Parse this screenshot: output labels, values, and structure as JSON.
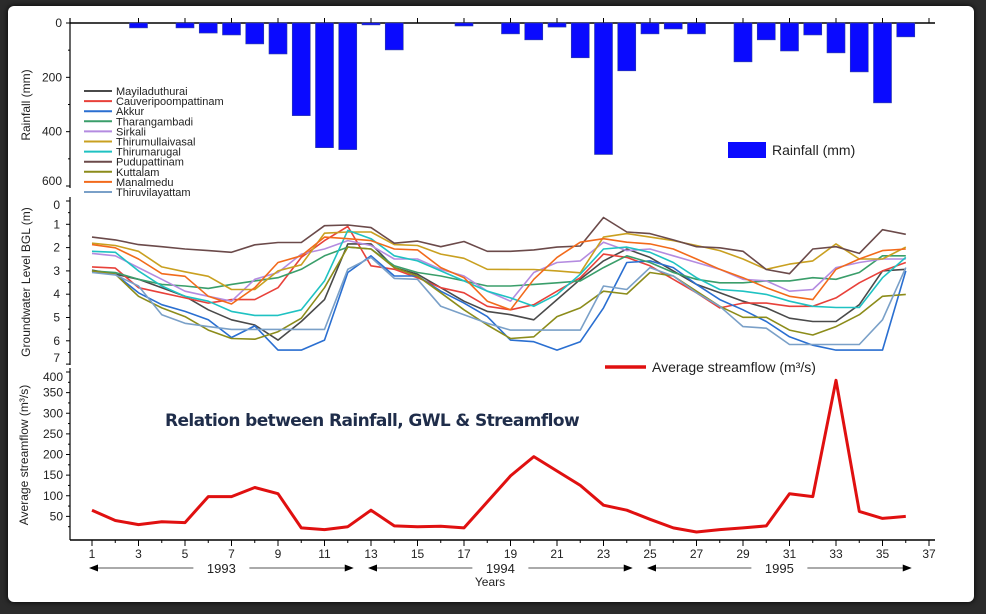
{
  "chart_data": [
    {
      "type": "bar",
      "name": "rainfall",
      "ylabel": "Rainfall (mm)",
      "ylim": [
        0,
        600
      ],
      "y_inverted": true,
      "yticks": [
        0,
        200,
        400,
        600
      ],
      "legend": "Rainfall (mm)",
      "legend_placement": "right",
      "color": "#0a0aff",
      "x": [
        1,
        2,
        3,
        4,
        5,
        6,
        7,
        8,
        9,
        10,
        11,
        12,
        13,
        14,
        15,
        16,
        17,
        18,
        19,
        20,
        21,
        22,
        23,
        24,
        25,
        26,
        27,
        28,
        29,
        30,
        31,
        32,
        33,
        34,
        35,
        36
      ],
      "values": [
        0,
        0,
        18,
        0,
        18,
        37,
        44,
        77,
        114,
        341,
        459,
        466,
        7,
        99,
        0,
        0,
        11,
        0,
        40,
        62,
        15,
        128,
        484,
        176,
        40,
        22,
        40,
        0,
        143,
        62,
        103,
        44,
        110,
        180,
        294,
        51
      ]
    },
    {
      "type": "line",
      "name": "groundwater",
      "ylabel": "Groundwater Level BGL (m)",
      "ylim": [
        0,
        7
      ],
      "y_inverted": true,
      "yticks": [
        0,
        1,
        2,
        3,
        4,
        5,
        6,
        7
      ],
      "legend_placement": "top-left",
      "series": [
        {
          "name": "Mayiladuthurai",
          "color": "#4a4a4a",
          "values": [
            2.97,
            3.14,
            3.36,
            3.72,
            4.09,
            4.67,
            5.1,
            5.32,
            5.97,
            5.17,
            4.23,
            1.84,
            1.84,
            2.86,
            3.14,
            3.72,
            4.3,
            4.74,
            4.88,
            5.1,
            4.23,
            3.36,
            2.57,
            2.06,
            2.42,
            3.0,
            3.58,
            3.94,
            4.3,
            4.59,
            5.03,
            5.17,
            5.17,
            4.45,
            3.0,
            2.93
          ]
        },
        {
          "name": "Cauveripoompattinam",
          "color": "#e8413a",
          "values": [
            2.83,
            2.88,
            3.72,
            3.94,
            4.16,
            4.38,
            4.23,
            4.23,
            3.72,
            2.42,
            1.7,
            1.09,
            2.78,
            2.93,
            3.29,
            3.72,
            3.94,
            4.52,
            4.67,
            4.45,
            3.87,
            3.29,
            2.28,
            2.42,
            2.78,
            3.36,
            3.94,
            4.59,
            4.38,
            4.38,
            4.52,
            4.52,
            4.16,
            3.51,
            3.0,
            2.64
          ]
        },
        {
          "name": "Akkur",
          "color": "#2a6fd1",
          "values": [
            3.0,
            3.14,
            3.94,
            4.45,
            4.74,
            5.1,
            5.86,
            5.36,
            6.4,
            6.4,
            5.97,
            3.07,
            2.35,
            3.22,
            3.22,
            3.87,
            4.38,
            4.96,
            5.97,
            6.04,
            6.4,
            6.04,
            4.59,
            2.64,
            2.57,
            2.86,
            3.58,
            4.23,
            4.67,
            5.17,
            5.83,
            6.19,
            6.4,
            6.4,
            6.4,
            3.0
          ]
        },
        {
          "name": "Tharangambadi",
          "color": "#3a9e6a",
          "values": [
            3.0,
            3.07,
            3.36,
            3.58,
            3.65,
            3.75,
            3.58,
            3.43,
            3.29,
            2.93,
            2.35,
            1.98,
            2.06,
            2.78,
            3.07,
            3.22,
            3.43,
            3.65,
            3.65,
            3.58,
            3.51,
            3.43,
            2.86,
            2.35,
            2.64,
            3.07,
            3.36,
            3.51,
            3.51,
            3.43,
            3.43,
            3.29,
            3.36,
            3.07,
            2.35,
            2.35
          ]
        },
        {
          "name": "Sirkali",
          "color": "#b48be0",
          "values": [
            2.25,
            2.35,
            2.86,
            3.36,
            3.87,
            4.09,
            4.3,
            3.36,
            3.07,
            2.28,
            2.06,
            1.7,
            1.91,
            2.49,
            2.49,
            2.93,
            3.22,
            3.87,
            4.3,
            3.07,
            2.64,
            2.57,
            1.77,
            2.13,
            2.06,
            2.35,
            2.64,
            2.93,
            3.36,
            3.43,
            3.87,
            3.8,
            2.86,
            2.64,
            2.49,
            2.49
          ]
        },
        {
          "name": "Thirumullaivasal",
          "color": "#c9a020",
          "values": [
            1.81,
            1.91,
            2.16,
            2.83,
            3.04,
            3.23,
            3.8,
            3.8,
            3.0,
            2.74,
            1.38,
            1.33,
            1.33,
            1.87,
            1.91,
            2.28,
            2.46,
            2.93,
            2.94,
            2.94,
            3.0,
            3.08,
            1.55,
            1.4,
            1.55,
            1.7,
            1.91,
            2.13,
            2.49,
            2.93,
            2.71,
            2.57,
            1.84,
            2.49,
            2.49,
            1.98
          ]
        },
        {
          "name": "Thirumarugal",
          "color": "#1fc2c2",
          "values": [
            2.16,
            2.2,
            3.0,
            3.65,
            4.09,
            4.3,
            4.74,
            4.91,
            4.91,
            4.67,
            3.43,
            1.26,
            1.62,
            2.35,
            2.57,
            3.0,
            3.43,
            3.87,
            4.16,
            4.52,
            4.01,
            3.14,
            2.06,
            1.98,
            2.2,
            2.64,
            3.29,
            3.8,
            3.87,
            4.01,
            4.3,
            4.52,
            4.57,
            4.57,
            3.29,
            2.42
          ]
        },
        {
          "name": "Pudupattinam",
          "color": "#6b4a4a",
          "values": [
            1.55,
            1.67,
            1.87,
            1.96,
            2.06,
            2.13,
            2.2,
            1.88,
            1.78,
            1.78,
            1.06,
            1.03,
            1.14,
            1.81,
            1.72,
            1.96,
            1.74,
            2.16,
            2.16,
            2.1,
            1.98,
            1.93,
            0.71,
            1.33,
            1.4,
            1.67,
            1.96,
            2.01,
            2.16,
            2.94,
            3.12,
            2.06,
            1.96,
            2.25,
            1.23,
            1.43
          ]
        },
        {
          "name": "Kuttalam",
          "color": "#8c8c1a",
          "values": [
            3.0,
            3.14,
            4.09,
            4.59,
            4.96,
            5.54,
            5.9,
            5.93,
            5.61,
            5.03,
            3.72,
            1.98,
            2.06,
            2.86,
            3.22,
            3.94,
            4.67,
            5.32,
            5.9,
            5.83,
            4.96,
            4.59,
            3.87,
            3.99,
            3.07,
            3.22,
            3.87,
            4.52,
            4.99,
            4.99,
            5.54,
            5.75,
            5.39,
            4.88,
            4.09,
            4.01
          ]
        },
        {
          "name": "Manalmedu",
          "color": "#f26a1b",
          "values": [
            1.87,
            2.01,
            2.49,
            3.12,
            3.23,
            4.09,
            4.42,
            3.72,
            2.64,
            2.35,
            1.55,
            1.62,
            1.7,
            2.06,
            2.1,
            2.86,
            3.29,
            4.3,
            4.67,
            3.36,
            2.42,
            1.77,
            1.62,
            1.77,
            1.84,
            2.06,
            2.49,
            2.93,
            3.29,
            3.72,
            4.09,
            4.23,
            2.93,
            2.49,
            2.13,
            2.06
          ]
        },
        {
          "name": "Thiruvilayattam",
          "color": "#7aa0c8",
          "values": [
            3.07,
            3.17,
            3.65,
            4.88,
            5.25,
            5.39,
            5.51,
            5.51,
            5.51,
            5.51,
            5.51,
            2.93,
            2.42,
            3.32,
            3.36,
            4.52,
            4.88,
            5.25,
            5.54,
            5.54,
            5.54,
            5.54,
            3.65,
            3.8,
            2.86,
            3.22,
            3.94,
            4.52,
            5.39,
            5.46,
            6.16,
            6.16,
            6.16,
            6.16,
            5.1,
            2.86
          ]
        }
      ]
    },
    {
      "type": "line",
      "name": "streamflow",
      "title": "Relation between Rainfall, GWL & Streamflow",
      "ylabel": "Average streamflow (m³/s)",
      "ylim": [
        0,
        400
      ],
      "yticks": [
        50,
        100,
        150,
        200,
        250,
        300,
        350,
        400
      ],
      "legend": "Average streamflow (m³/s)",
      "legend_placement": "top-right",
      "color": "#e01010",
      "values": [
        65,
        40,
        30,
        37,
        35,
        98,
        98,
        120,
        105,
        22,
        18,
        25,
        65,
        27,
        25,
        26,
        22,
        85,
        148,
        195,
        160,
        125,
        77,
        65,
        43,
        22,
        12,
        18,
        22,
        27,
        105,
        98,
        380,
        62,
        45,
        50
      ]
    }
  ],
  "xaxis": {
    "label": "Years",
    "xlim": [
      0.5,
      37
    ],
    "ticks": [
      1,
      3,
      5,
      7,
      9,
      11,
      13,
      15,
      17,
      19,
      21,
      23,
      25,
      27,
      29,
      31,
      33,
      35,
      37
    ],
    "years": [
      {
        "label": "1993",
        "from": 1,
        "to": 12
      },
      {
        "label": "1994",
        "from": 13,
        "to": 24
      },
      {
        "label": "1995",
        "from": 25,
        "to": 36
      }
    ]
  }
}
